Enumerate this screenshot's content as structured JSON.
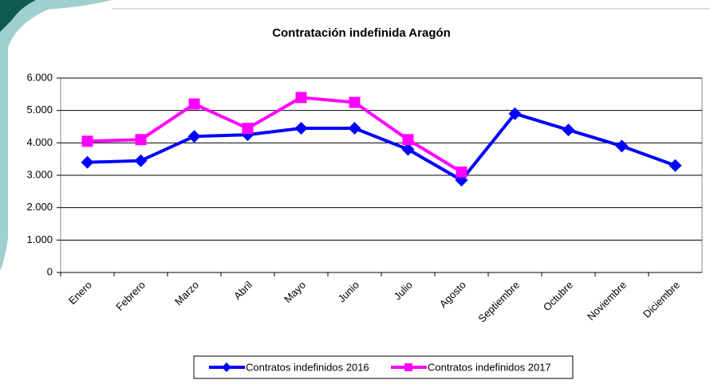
{
  "chart_data": {
    "type": "line",
    "title": "Contratación indefinida Aragón",
    "categories": [
      "Enero",
      "Febrero",
      "Marzo",
      "Abril",
      "Mayo",
      "Junio",
      "Julio",
      "Agosto",
      "Septiembre",
      "Octubre",
      "Noviembre",
      "Diciembre"
    ],
    "series": [
      {
        "name": "Contratos indefinidos 2016",
        "color": "#0000ff",
        "marker": "diamond",
        "values": [
          3400,
          3450,
          4200,
          4250,
          4450,
          4450,
          3800,
          2850,
          4900,
          4400,
          3900,
          3300
        ]
      },
      {
        "name": "Contratos indefinidos 2017",
        "color": "#ff00ff",
        "marker": "square",
        "values": [
          4050,
          4100,
          5200,
          4450,
          5400,
          5250,
          4100,
          3100,
          null,
          null,
          null,
          null
        ]
      }
    ],
    "ylim": [
      0,
      6000
    ],
    "yticks": [
      0,
      {
        "value": 1000,
        "label": "1.000"
      },
      {
        "value": 2000,
        "label": "2.000"
      },
      {
        "value": 3000,
        "label": "3.000"
      },
      {
        "value": 4000,
        "label": "4.000"
      },
      {
        "value": 5000,
        "label": "5.000"
      },
      {
        "value": 6000,
        "label": "6.000"
      }
    ],
    "grid": true,
    "legend": "bottom"
  }
}
